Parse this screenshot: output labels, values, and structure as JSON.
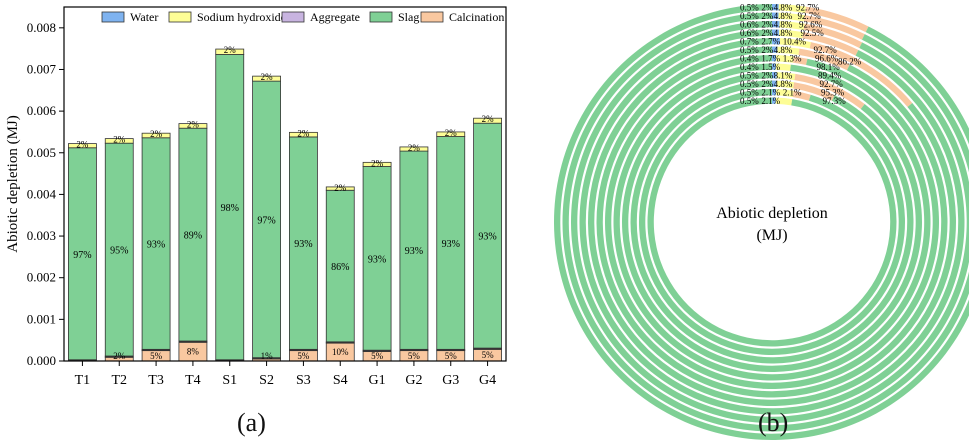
{
  "panels": [
    {
      "label": "(a)"
    },
    {
      "label": "(b)",
      "center_label_line1": "Abiotic depletion",
      "center_label_line2": "(MJ)"
    }
  ],
  "chart_data": [
    {
      "type": "bar",
      "stacked": true,
      "ylabel": "Abiotic depletion (MJ)",
      "ylim": [
        0,
        0.0085
      ],
      "yticks": [
        "0.000",
        "0.001",
        "0.002",
        "0.003",
        "0.004",
        "0.005",
        "0.006",
        "0.007",
        "0.008"
      ],
      "ytick_values": [
        0,
        0.001,
        0.002,
        0.003,
        0.004,
        0.005,
        0.006,
        0.007,
        0.008
      ],
      "categories": [
        "T1",
        "T2",
        "T3",
        "T4",
        "S1",
        "S2",
        "S3",
        "S4",
        "G1",
        "G2",
        "G3",
        "G4"
      ],
      "legend_position": "top",
      "series": [
        {
          "name": "Water",
          "color": "#7fb3f0",
          "values": [
            1e-05,
            1e-05,
            1e-05,
            1e-05,
            1e-05,
            1e-05,
            1e-05,
            1e-05,
            1e-05,
            1e-05,
            1e-05,
            1e-05
          ]
        },
        {
          "name": "Sodium hydroxide",
          "color": "#fdfd96",
          "values": [
            0.0001,
            0.00011,
            0.00011,
            0.00011,
            0.00013,
            0.00012,
            0.00011,
            8e-05,
            0.0001,
            0.0001,
            0.00011,
            0.00012
          ]
        },
        {
          "name": "Aggregate",
          "color": "#c8b4e0",
          "values": [
            2e-05,
            2e-05,
            2e-05,
            2e-05,
            2e-05,
            2e-05,
            2e-05,
            2e-05,
            2e-05,
            2e-05,
            2e-05,
            2e-05
          ]
        },
        {
          "name": "Slag",
          "color": "#7fd095",
          "values": [
            0.00509,
            0.00511,
            0.00508,
            0.00511,
            0.00733,
            0.00664,
            0.0051,
            0.00364,
            0.00441,
            0.00476,
            0.00511,
            0.0054
          ]
        },
        {
          "name": "Calcination",
          "color": "#f9c8a0",
          "values": [
            0.0,
            9e-05,
            0.00025,
            0.00045,
            0.0,
            5e-05,
            0.00025,
            0.00043,
            0.00023,
            0.00025,
            0.00025,
            0.00028
          ]
        }
      ],
      "annotations": {
        "top": [
          "2%",
          "2%",
          "2%",
          "2%",
          "2%",
          "2%",
          "2%",
          "2%",
          "2%",
          "2%",
          "2%",
          "2%"
        ],
        "slag": [
          "97%",
          "95%",
          "93%",
          "89%",
          "98%",
          "97%",
          "93%",
          "86%",
          "93%",
          "93%",
          "93%",
          "93%"
        ],
        "bottom": [
          "",
          "2%",
          "5%",
          "8%",
          "",
          "1%",
          "5%",
          "10%",
          "5%",
          "5%",
          "5%",
          "5%"
        ]
      }
    },
    {
      "type": "pie",
      "variant": "multi-ring donut",
      "rings": [
        {
          "slices": [
            {
              "name": "Water",
              "value": 0.5
            },
            {
              "name": "Sodium hydroxide",
              "value": 2
            },
            {
              "name": "Calcination",
              "value": 4.8
            },
            {
              "name": "Slag",
              "value": 92.7
            }
          ],
          "labels": [
            "0.5%",
            "2%",
            "4.8%",
            "92.7%"
          ]
        },
        {
          "slices": [
            {
              "name": "Water",
              "value": 0.5
            },
            {
              "name": "Sodium hydroxide",
              "value": 2
            },
            {
              "name": "Calcination",
              "value": 4.8
            },
            {
              "name": "Slag",
              "value": 92.7
            }
          ],
          "labels": [
            "0.5%",
            "2%",
            "4.8%",
            "92.7%"
          ]
        },
        {
          "slices": [
            {
              "name": "Water",
              "value": 0.6
            },
            {
              "name": "Sodium hydroxide",
              "value": 2
            },
            {
              "name": "Calcination",
              "value": 4.8
            },
            {
              "name": "Slag",
              "value": 92.6
            }
          ],
          "labels": [
            "0.6%",
            "2%",
            "4.8%",
            "92.6%"
          ]
        },
        {
          "slices": [
            {
              "name": "Water",
              "value": 0.6
            },
            {
              "name": "Sodium hydroxide",
              "value": 2
            },
            {
              "name": "Calcination",
              "value": 4.8
            },
            {
              "name": "Slag",
              "value": 92.5
            }
          ],
          "labels": [
            "0.6%",
            "2%",
            "4.8%",
            "92.5%"
          ]
        },
        {
          "slices": [
            {
              "name": "Water",
              "value": 0.7
            },
            {
              "name": "Sodium hydroxide",
              "value": 2.7
            },
            {
              "name": "Calcination",
              "value": 10.4
            },
            {
              "name": "Slag",
              "value": 86.2
            }
          ],
          "labels": [
            "0.7%",
            "2.7%",
            "10.4%",
            "86.2%"
          ]
        },
        {
          "slices": [
            {
              "name": "Water",
              "value": 0.5
            },
            {
              "name": "Sodium hydroxide",
              "value": 2
            },
            {
              "name": "Calcination",
              "value": 4.8
            },
            {
              "name": "Slag",
              "value": 92.7
            }
          ],
          "labels": [
            "0.5%",
            "2%",
            "4.8%",
            "92.7%"
          ]
        },
        {
          "slices": [
            {
              "name": "Water",
              "value": 0.4
            },
            {
              "name": "Sodium hydroxide",
              "value": 1.7
            },
            {
              "name": "Calcination",
              "value": 1.3
            },
            {
              "name": "Slag",
              "value": 96.6
            }
          ],
          "labels": [
            "0.4%",
            "1.7%",
            "1.3%",
            "96.6%"
          ]
        },
        {
          "slices": [
            {
              "name": "Water",
              "value": 0.4
            },
            {
              "name": "Sodium hydroxide",
              "value": 1.5
            },
            {
              "name": "Slag",
              "value": 98.1
            }
          ],
          "labels": [
            "0.4%",
            "1.5%",
            "98.1%"
          ]
        },
        {
          "slices": [
            {
              "name": "Water",
              "value": 0.5
            },
            {
              "name": "Sodium hydroxide",
              "value": 2
            },
            {
              "name": "Calcination",
              "value": 8.1
            },
            {
              "name": "Slag",
              "value": 89.4
            }
          ],
          "labels": [
            "0.5%",
            "2%",
            "8.1%",
            "89.4%"
          ]
        },
        {
          "slices": [
            {
              "name": "Water",
              "value": 0.5
            },
            {
              "name": "Sodium hydroxide",
              "value": 2
            },
            {
              "name": "Calcination",
              "value": 4.8
            },
            {
              "name": "Slag",
              "value": 92.7
            }
          ],
          "labels": [
            "0.5%",
            "2%",
            "4.8%",
            "92.7%"
          ]
        },
        {
          "slices": [
            {
              "name": "Water",
              "value": 0.5
            },
            {
              "name": "Sodium hydroxide",
              "value": 2.1
            },
            {
              "name": "Calcination",
              "value": 2.1
            },
            {
              "name": "Slag",
              "value": 95.3
            }
          ],
          "labels": [
            "0.5%",
            "2.1%",
            "2.1%",
            "95.3%"
          ]
        },
        {
          "slices": [
            {
              "name": "Water",
              "value": 0.5
            },
            {
              "name": "Sodium hydroxide",
              "value": 2.1
            },
            {
              "name": "Slag",
              "value": 97.3
            }
          ],
          "labels": [
            "0.5%",
            "2.1%",
            "97.3%"
          ]
        }
      ]
    }
  ]
}
